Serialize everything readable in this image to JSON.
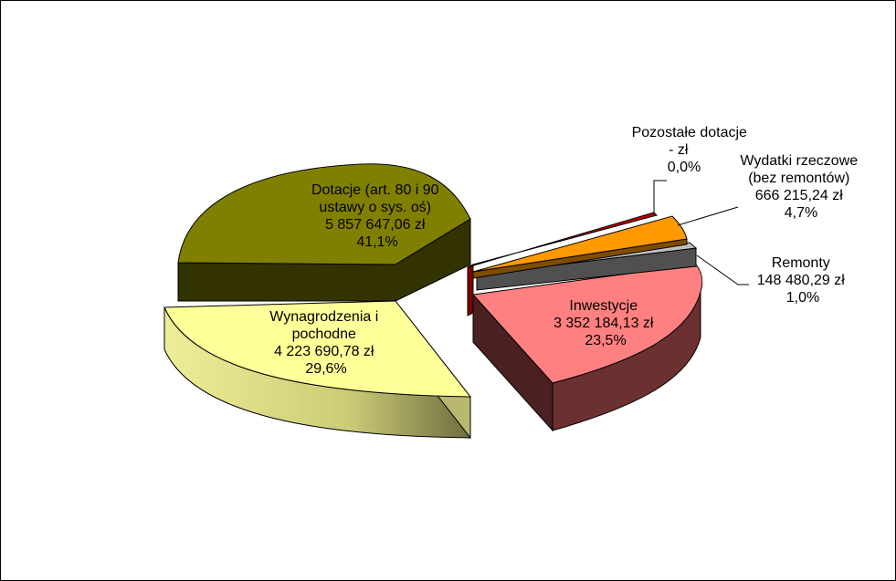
{
  "chart_data": {
    "type": "pie",
    "style": "3d-exploded",
    "title": "",
    "slices": [
      {
        "name": "Dotacje (art. 80 i 90 ustawy o sys. oś)",
        "label_lines": [
          "Dotacje (art. 80 i 90",
          "ustawy o sys. oś)",
          "5 857 647,06 zł",
          "41,1%"
        ],
        "value": 5857647.06,
        "value_text": "5 857 647,06 zł",
        "percent": 41.1,
        "percent_text": "41,1%",
        "color": "#808000"
      },
      {
        "name": "Pozostałe dotacje",
        "label_lines": [
          "Pozostałe dotacje",
          "-   zł",
          "0,0%"
        ],
        "value": 0,
        "value_text": "-   zł",
        "percent": 0.0,
        "percent_text": "0,0%",
        "color": "#C00000"
      },
      {
        "name": "Wydatki rzeczowe (bez remontów)",
        "label_lines": [
          "Wydatki rzeczowe",
          "(bez remontów)",
          "666 215,24 zł",
          "4,7%"
        ],
        "value": 666215.24,
        "value_text": "666 215,24 zł",
        "percent": 4.7,
        "percent_text": "4,7%",
        "color": "#FF9900"
      },
      {
        "name": "Remonty",
        "label_lines": [
          "Remonty",
          "148 480,29 zł",
          "1,0%"
        ],
        "value": 148480.29,
        "value_text": "148 480,29 zł",
        "percent": 1.0,
        "percent_text": "1,0%",
        "color": "#C0C0C0"
      },
      {
        "name": "Inwestycje",
        "label_lines": [
          "Inwestycje",
          "3 352 184,13 zł",
          "23,5%"
        ],
        "value": 3352184.13,
        "value_text": "3 352 184,13 zł",
        "percent": 23.5,
        "percent_text": "23,5%",
        "color": "#FF8080"
      },
      {
        "name": "Wynagrodzenia i pochodne",
        "label_lines": [
          "Wynagrodzenia i",
          "pochodne",
          "4 223 690,78 zł",
          "29,6%"
        ],
        "value": 4223690.78,
        "value_text": "4 223 690,78 zł",
        "percent": 29.6,
        "percent_text": "29,6%",
        "color": "#FFFF99"
      }
    ],
    "legend": "none"
  }
}
